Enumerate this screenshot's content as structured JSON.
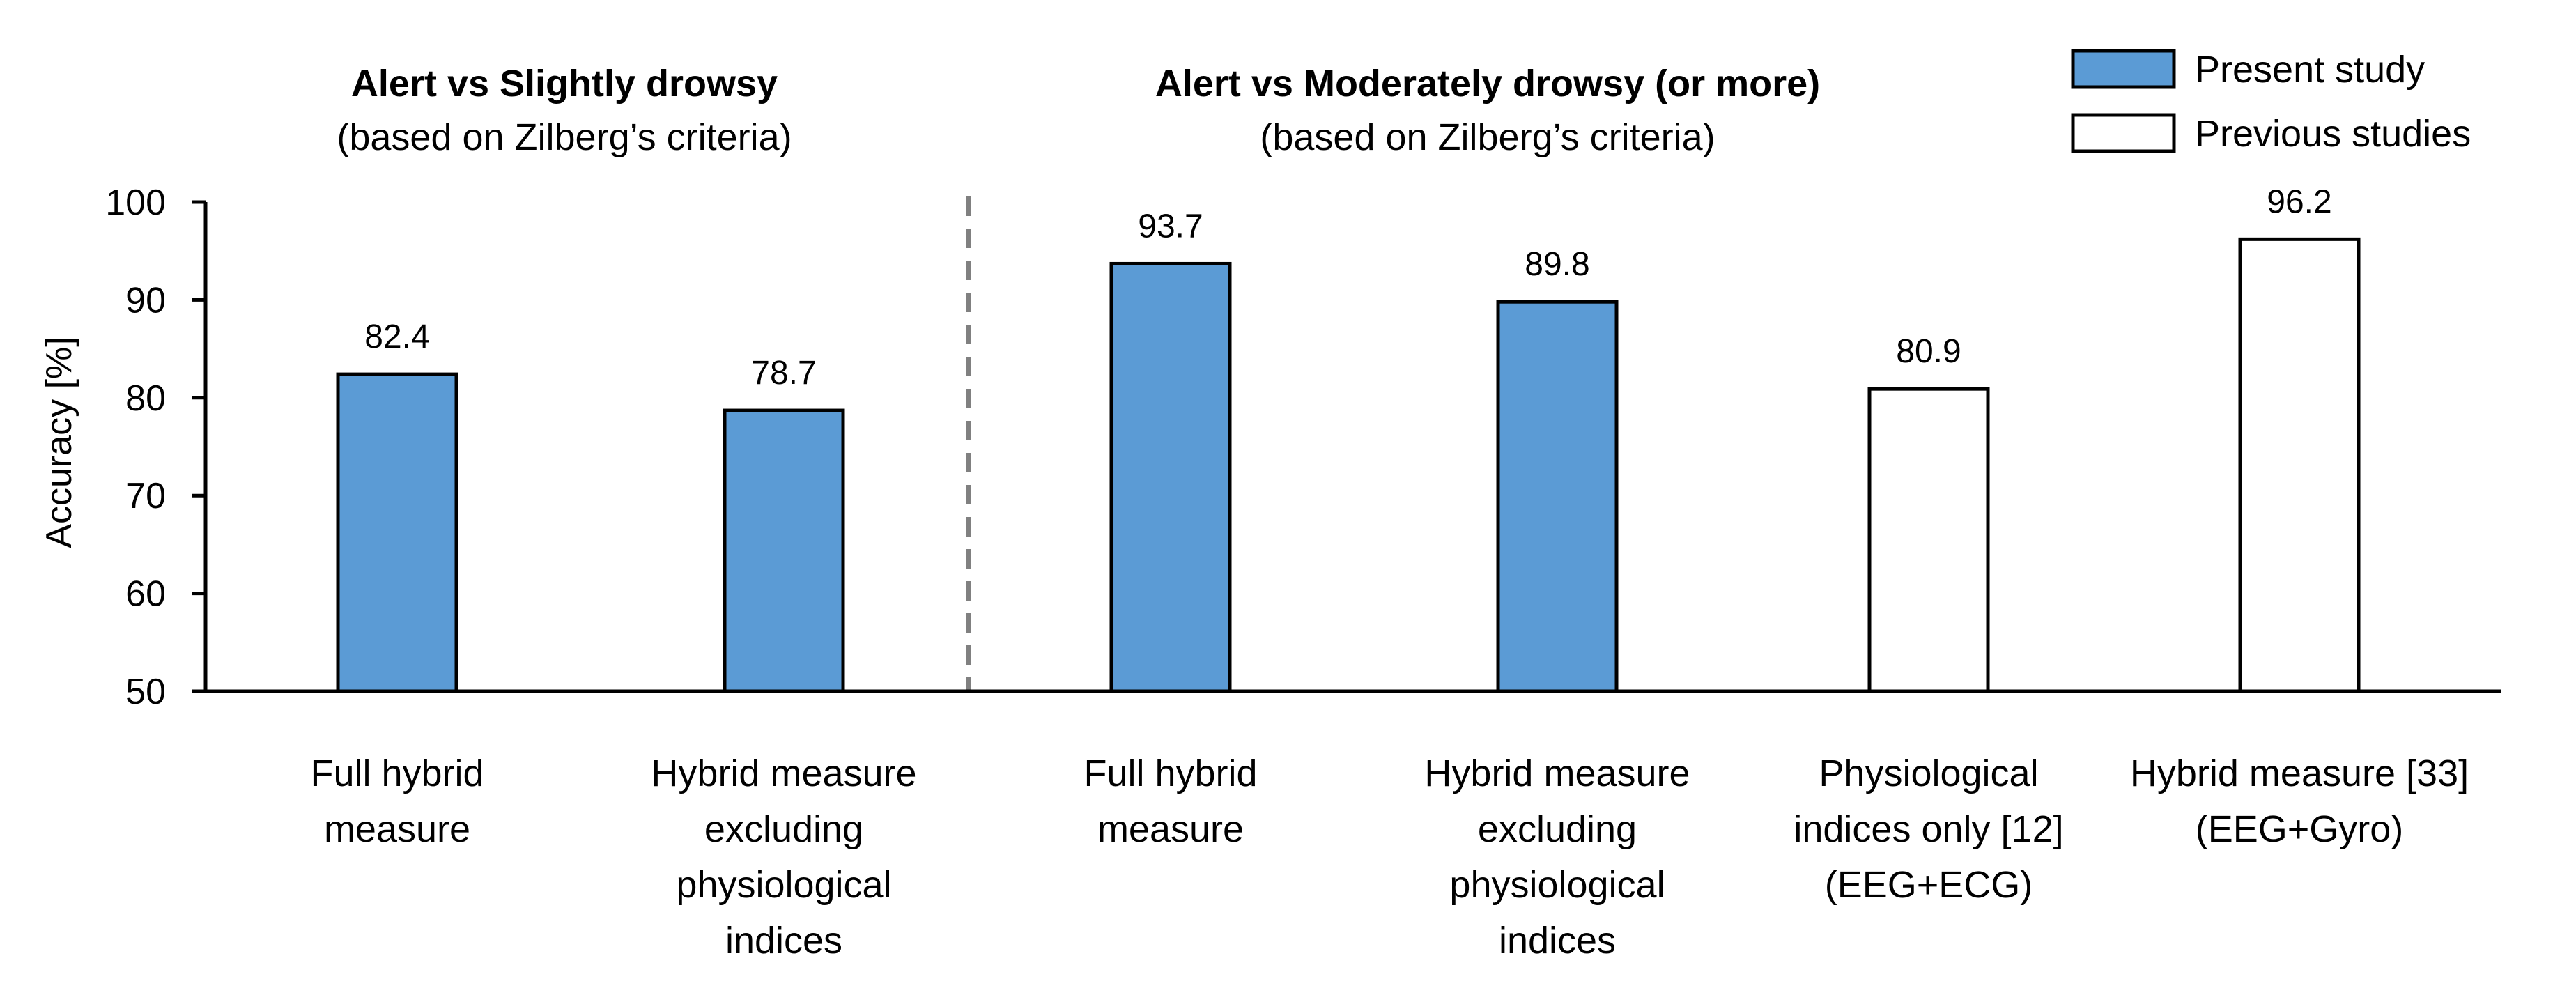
{
  "chart_data": {
    "type": "bar",
    "ylabel": "Accuracy [%]",
    "ylim": [
      50,
      100
    ],
    "yticks": [
      50,
      60,
      70,
      80,
      90,
      100
    ],
    "legend": {
      "placement": "top-right",
      "entries": [
        {
          "name": "Present study",
          "color": "#5b9bd5"
        },
        {
          "name": "Previous studies",
          "color": "#ffffff"
        }
      ]
    },
    "groups": [
      {
        "title": "Alert vs Slightly drowsy",
        "subtitle": "(based on Zilberg’s criteria)"
      },
      {
        "title": "Alert vs Moderately drowsy (or more)",
        "subtitle": "(based on Zilberg’s criteria)"
      }
    ],
    "bars": [
      {
        "label": [
          "Full hybrid",
          "measure"
        ],
        "value": 82.4,
        "series": "Present study"
      },
      {
        "label": [
          "Hybrid measure",
          "excluding",
          "physiological",
          "indices"
        ],
        "value": 78.7,
        "series": "Present study"
      },
      {
        "label": [
          "Full hybrid",
          "measure"
        ],
        "value": 93.7,
        "series": "Present study"
      },
      {
        "label": [
          "Hybrid measure",
          "excluding",
          "physiological",
          "indices"
        ],
        "value": 89.8,
        "series": "Present study"
      },
      {
        "label": [
          "Physiological",
          "indices only [12]",
          "(EEG+ECG)"
        ],
        "value": 80.9,
        "series": "Previous studies"
      },
      {
        "label": [
          "Hybrid measure [33]",
          "(EEG+Gyro)"
        ],
        "value": 96.2,
        "series": "Previous studies"
      }
    ]
  }
}
